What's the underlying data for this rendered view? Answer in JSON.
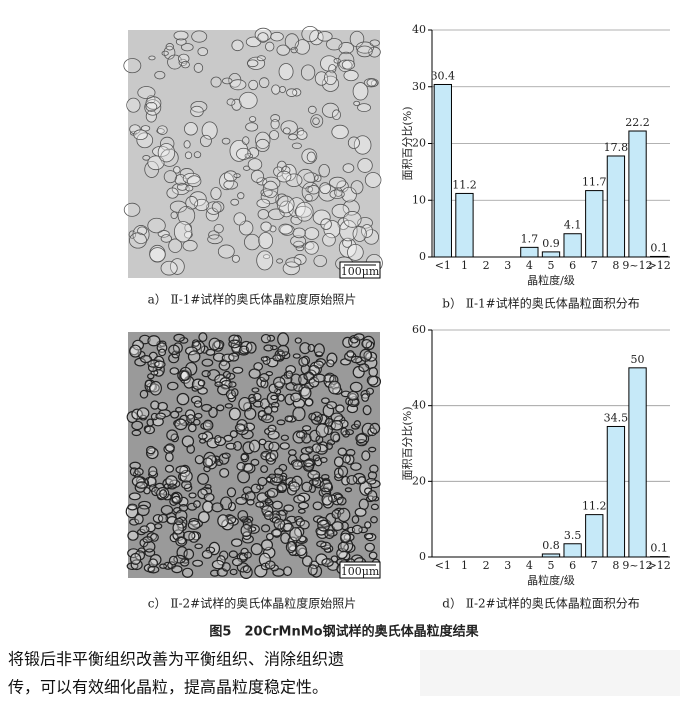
{
  "micrographs": [
    {
      "scale": "100μm",
      "caption": "a） Ⅱ-1#试样的奥氏体晶粒度原始照片"
    },
    {
      "scale": "100μm",
      "caption": "c） Ⅱ-2#试样的奥氏体晶粒度原始照片"
    }
  ],
  "chart_data": [
    {
      "type": "bar",
      "caption": "b） Ⅱ-1#试样的奥氏体晶粒面积分布",
      "y_label": "面积百分比(%)",
      "x_label": "晶粒度/级",
      "categories": [
        "<1",
        "1",
        "2",
        "3",
        "4",
        "5",
        "6",
        "7",
        "8",
        "9~12",
        ">12"
      ],
      "values": [
        30.4,
        11.2,
        null,
        null,
        1.7,
        0.9,
        4.1,
        11.7,
        17.8,
        22.2,
        0.1
      ],
      "color": "#c6e9f8",
      "ylim": [
        0,
        40
      ],
      "yticks": [
        0,
        10,
        20,
        30,
        40
      ],
      "grid": true
    },
    {
      "type": "bar",
      "caption": "d） Ⅱ-2#试样的奥氏体晶粒面积分布",
      "y_label": "面积百分比(%)",
      "x_label": "晶粒度/级",
      "categories": [
        "<1",
        "1",
        "2",
        "3",
        "4",
        "5",
        "6",
        "7",
        "8",
        "9~12",
        ">12"
      ],
      "values": [
        null,
        null,
        null,
        null,
        null,
        0.8,
        3.5,
        11.2,
        34.5,
        50,
        0.1
      ],
      "color": "#c6e9f8",
      "ylim": [
        0,
        60
      ],
      "yticks": [
        0,
        20,
        40,
        60
      ],
      "grid": true
    }
  ],
  "figure_caption": "图5　20CrMnMo钢试样的奥氏体晶粒度结果",
  "body": [
    "将锻后非平衡组织改善为平衡组织、消除组织遗",
    "传，可以有效细化晶粒，提高晶粒度稳定性。"
  ]
}
